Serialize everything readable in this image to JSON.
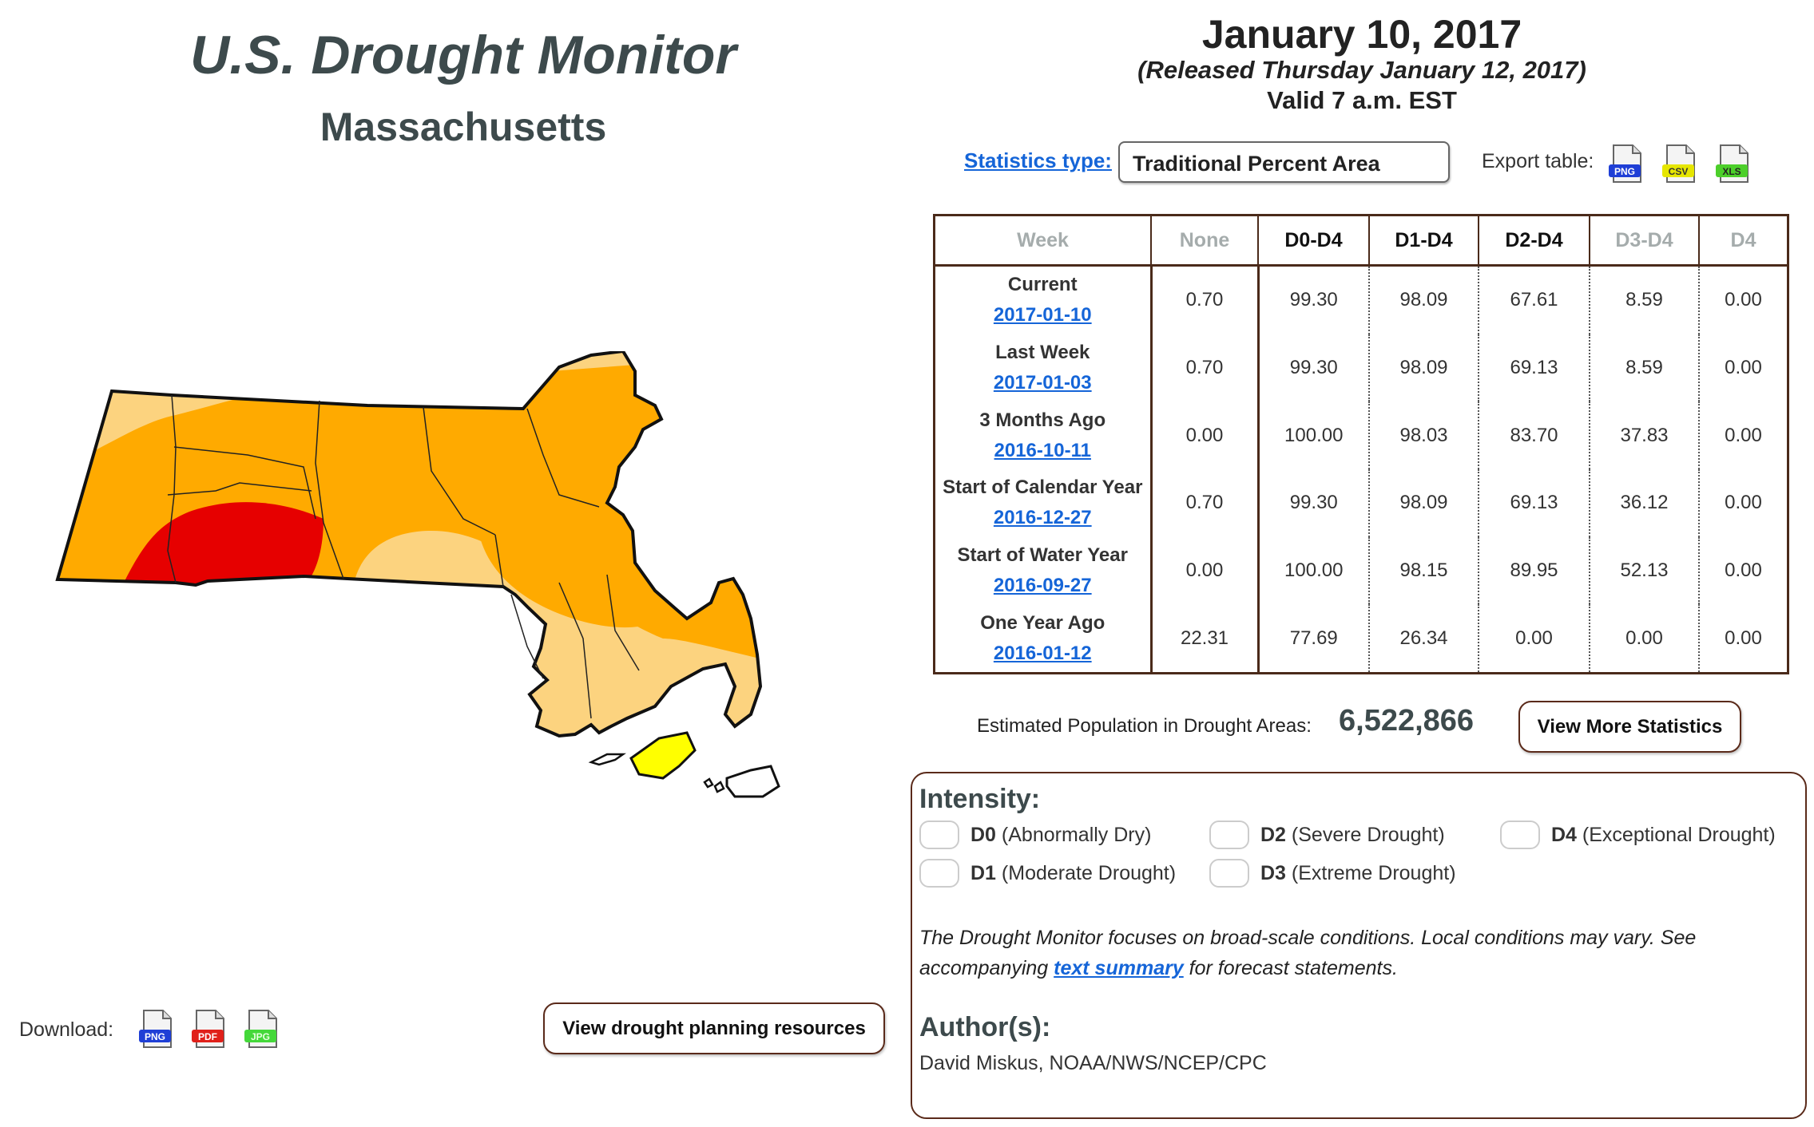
{
  "header": {
    "title": "U.S. Drought Monitor",
    "state": "Massachusetts",
    "date": "January 10, 2017",
    "released": "(Released Thursday January 12, 2017)",
    "valid": "Valid 7 a.m. EST"
  },
  "controls": {
    "statistics_type_label": "Statistics type:",
    "statistics_type_value": "Traditional Percent Area",
    "export_label": "Export table:",
    "export_formats": [
      "PNG",
      "CSV",
      "XLS"
    ]
  },
  "table": {
    "columns": [
      "Week",
      "None",
      "D0-D4",
      "D1-D4",
      "D2-D4",
      "D3-D4",
      "D4"
    ],
    "rows": [
      {
        "label": "Current",
        "date": "2017-01-10",
        "values": [
          "0.70",
          "99.30",
          "98.09",
          "67.61",
          "8.59",
          "0.00"
        ]
      },
      {
        "label": "Last Week",
        "date": "2017-01-03",
        "values": [
          "0.70",
          "99.30",
          "98.09",
          "69.13",
          "8.59",
          "0.00"
        ]
      },
      {
        "label": "3 Months Ago",
        "date": "2016-10-11",
        "values": [
          "0.00",
          "100.00",
          "98.03",
          "83.70",
          "37.83",
          "0.00"
        ]
      },
      {
        "label": "Start of Calendar Year",
        "date": "2016-12-27",
        "values": [
          "0.70",
          "99.30",
          "98.09",
          "69.13",
          "36.12",
          "0.00"
        ]
      },
      {
        "label": "Start of Water Year",
        "date": "2016-09-27",
        "values": [
          "0.00",
          "100.00",
          "98.15",
          "89.95",
          "52.13",
          "0.00"
        ]
      },
      {
        "label": "One Year Ago",
        "date": "2016-01-12",
        "values": [
          "22.31",
          "77.69",
          "26.34",
          "0.00",
          "0.00",
          "0.00"
        ]
      }
    ]
  },
  "population": {
    "label": "Estimated Population in Drought Areas:",
    "value": "6,522,866",
    "more_button": "View More Statistics"
  },
  "legend": {
    "heading": "Intensity:",
    "items": [
      {
        "code": "D0",
        "desc": "(Abnormally Dry)",
        "color": "#ffff00"
      },
      {
        "code": "D2",
        "desc": "(Severe Drought)",
        "color": "#e69800"
      },
      {
        "code": "D4",
        "desc": "(Exceptional Drought)",
        "color": "#730000"
      },
      {
        "code": "D1",
        "desc": "(Moderate Drought)",
        "color": "#fcd37f"
      },
      {
        "code": "D3",
        "desc": "(Extreme Drought)",
        "color": "#e60000"
      }
    ],
    "note_before": "The Drought Monitor focuses on broad-scale conditions. Local conditions may vary. See accompanying ",
    "note_link": "text summary",
    "note_after": " for forecast statements.",
    "author_heading": "Author(s):",
    "author": "David Miskus, NOAA/NWS/NCEP/CPC"
  },
  "download": {
    "label": "Download:",
    "formats": [
      "PNG",
      "PDF",
      "JPG"
    ],
    "planning_button": "View drought planning resources"
  },
  "map_colors": {
    "d0": "#ffff00",
    "d1": "#fcd37f",
    "d2": "#ffaa00",
    "d3": "#e60000"
  }
}
